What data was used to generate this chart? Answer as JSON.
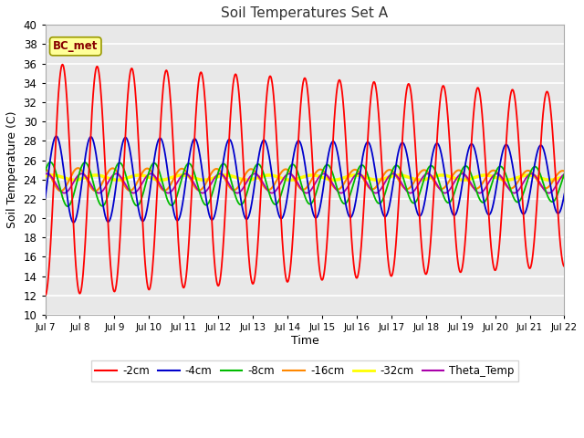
{
  "title": "Soil Temperatures Set A",
  "xlabel": "Time",
  "ylabel": "Soil Temperature (C)",
  "ylim": [
    10,
    40
  ],
  "xtick_labels": [
    "Jul 7",
    "Jul 8",
    "Jul 9",
    "Jul 10",
    "Jul 11",
    "Jul 12",
    "Jul 13",
    "Jul 14",
    "Jul 15",
    "Jul 16",
    "Jul 17",
    "Jul 18",
    "Jul 19",
    "Jul 20",
    "Jul 21",
    "Jul 22"
  ],
  "annotation_text": "BC_met",
  "series_colors": {
    "-2cm": "#ff0000",
    "-4cm": "#0000cc",
    "-8cm": "#00bb00",
    "-16cm": "#ff8800",
    "-32cm": "#ffff00",
    "Theta_Temp": "#aa00aa"
  },
  "fig_bg": "#ffffff",
  "plot_bg": "#e8e8e8",
  "grid_color": "#ffffff",
  "n_points": 1440
}
